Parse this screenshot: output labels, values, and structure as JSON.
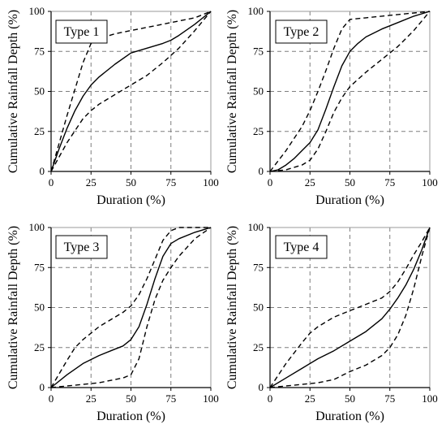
{
  "chart_data": [
    {
      "type": "line",
      "title": "Type 1",
      "xlabel": "Duration (%)",
      "ylabel": "Cumulative Rainfall Depth (%)",
      "xlim": [
        0,
        100
      ],
      "ylim": [
        0,
        100
      ],
      "xticks": [
        "0",
        "25",
        "50",
        "75",
        "100"
      ],
      "yticks": [
        "0",
        "25",
        "50",
        "75",
        "100"
      ],
      "grid": true,
      "series": [
        {
          "style": "solid",
          "x": [
            0,
            5,
            10,
            15,
            20,
            25,
            30,
            40,
            50,
            60,
            70,
            75,
            80,
            90,
            100
          ],
          "y": [
            0,
            14,
            27,
            38,
            47,
            54,
            59,
            67,
            74,
            77,
            80,
            82,
            85,
            92,
            100
          ]
        },
        {
          "style": "dashed",
          "x": [
            0,
            10,
            20,
            25,
            30,
            40,
            50,
            60,
            70,
            80,
            90,
            100
          ],
          "y": [
            0,
            35,
            68,
            80,
            83,
            86,
            88,
            90,
            92,
            94,
            96,
            100
          ]
        },
        {
          "style": "dashed",
          "x": [
            0,
            10,
            20,
            25,
            30,
            40,
            50,
            60,
            70,
            80,
            90,
            100
          ],
          "y": [
            0,
            18,
            33,
            38,
            42,
            48,
            54,
            60,
            68,
            77,
            88,
            100
          ]
        }
      ]
    },
    {
      "type": "line",
      "title": "Type 2",
      "xlabel": "Duration (%)",
      "ylabel": "Cumulative Rainfall Depth (%)",
      "xlim": [
        0,
        100
      ],
      "ylim": [
        0,
        100
      ],
      "xticks": [
        "0",
        "25",
        "50",
        "75",
        "100"
      ],
      "yticks": [
        "0",
        "25",
        "50",
        "75",
        "100"
      ],
      "grid": true,
      "series": [
        {
          "style": "solid",
          "x": [
            0,
            5,
            10,
            15,
            20,
            25,
            30,
            35,
            40,
            45,
            50,
            55,
            60,
            70,
            80,
            90,
            100
          ],
          "y": [
            0,
            1,
            4,
            8,
            13,
            18,
            26,
            39,
            53,
            66,
            75,
            80,
            84,
            89,
            93,
            97,
            100
          ]
        },
        {
          "style": "dashed",
          "x": [
            0,
            10,
            20,
            25,
            30,
            35,
            40,
            45,
            50,
            60,
            70,
            80,
            90,
            100
          ],
          "y": [
            0,
            13,
            28,
            38,
            50,
            63,
            77,
            89,
            95,
            96,
            97,
            98,
            99,
            100
          ]
        },
        {
          "style": "dashed",
          "x": [
            0,
            10,
            20,
            25,
            30,
            35,
            40,
            45,
            50,
            60,
            70,
            80,
            90,
            100
          ],
          "y": [
            0,
            1,
            4,
            7,
            14,
            25,
            37,
            46,
            53,
            62,
            70,
            78,
            88,
            100
          ]
        }
      ]
    },
    {
      "type": "line",
      "title": "Type 3",
      "xlabel": "Duration (%)",
      "ylabel": "Cumulative Rainfall Depth (%)",
      "xlim": [
        0,
        100
      ],
      "ylim": [
        0,
        100
      ],
      "xticks": [
        "0",
        "25",
        "50",
        "75",
        "100"
      ],
      "yticks": [
        "0",
        "25",
        "50",
        "75",
        "100"
      ],
      "grid": true,
      "series": [
        {
          "style": "solid",
          "x": [
            0,
            10,
            20,
            30,
            40,
            45,
            50,
            55,
            60,
            65,
            70,
            75,
            80,
            90,
            100
          ],
          "y": [
            0,
            8,
            15,
            20,
            24,
            26,
            30,
            38,
            52,
            68,
            82,
            90,
            93,
            97,
            100
          ]
        },
        {
          "style": "dashed",
          "x": [
            0,
            10,
            15,
            20,
            25,
            30,
            40,
            45,
            50,
            55,
            60,
            65,
            70,
            75,
            80,
            90,
            100
          ],
          "y": [
            0,
            17,
            25,
            30,
            34,
            38,
            44,
            47,
            51,
            58,
            68,
            80,
            92,
            98,
            100,
            100,
            100
          ]
        },
        {
          "style": "dashed",
          "x": [
            0,
            10,
            20,
            30,
            40,
            45,
            50,
            55,
            60,
            65,
            70,
            75,
            80,
            90,
            100
          ],
          "y": [
            0,
            1,
            2,
            3,
            5,
            6,
            8,
            18,
            38,
            55,
            67,
            75,
            82,
            93,
            100
          ]
        }
      ]
    },
    {
      "type": "line",
      "title": "Type 4",
      "xlabel": "Duration (%)",
      "ylabel": "Cumulative Rainfall Depth (%)",
      "xlim": [
        0,
        100
      ],
      "ylim": [
        0,
        100
      ],
      "xticks": [
        "0",
        "25",
        "50",
        "75",
        "100"
      ],
      "yticks": [
        "0",
        "25",
        "50",
        "75",
        "100"
      ],
      "grid": true,
      "series": [
        {
          "style": "solid",
          "x": [
            0,
            10,
            20,
            30,
            40,
            50,
            60,
            70,
            75,
            80,
            85,
            90,
            95,
            100
          ],
          "y": [
            0,
            6,
            12,
            18,
            23,
            29,
            35,
            43,
            49,
            56,
            64,
            74,
            86,
            100
          ]
        },
        {
          "style": "dashed",
          "x": [
            0,
            10,
            20,
            25,
            30,
            40,
            50,
            60,
            70,
            75,
            80,
            85,
            90,
            95,
            100
          ],
          "y": [
            0,
            15,
            28,
            34,
            38,
            44,
            48,
            52,
            56,
            60,
            66,
            74,
            83,
            91,
            100
          ]
        },
        {
          "style": "dashed",
          "x": [
            0,
            10,
            20,
            30,
            40,
            50,
            60,
            70,
            75,
            80,
            85,
            90,
            95,
            100
          ],
          "y": [
            0,
            1,
            2,
            3,
            5,
            10,
            14,
            20,
            25,
            33,
            45,
            62,
            82,
            100
          ]
        }
      ]
    }
  ]
}
